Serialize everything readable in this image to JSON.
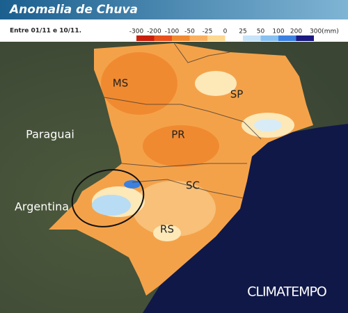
{
  "header": {
    "title": "Anomalia de Chuva",
    "subtitle": "Entre 01/11 e 10/11."
  },
  "legend": {
    "ticks": [
      -300,
      -200,
      -100,
      -50,
      -25,
      0,
      25,
      50,
      100,
      200,
      {
        "value": 300,
        "label": "300(mm)"
      }
    ],
    "colors": [
      "#c8200c",
      "#e8501c",
      "#f08a30",
      "#f8b060",
      "#fcd890",
      "#ffffff",
      "#c8e4f8",
      "#88c0f0",
      "#3c80e0",
      "#1a1a80"
    ]
  },
  "map": {
    "labels": [
      "MS",
      "SP",
      "PR",
      "SC",
      "RS",
      "Paraguai",
      "Argentina"
    ]
  },
  "brand": "CLIMATEMPO"
}
